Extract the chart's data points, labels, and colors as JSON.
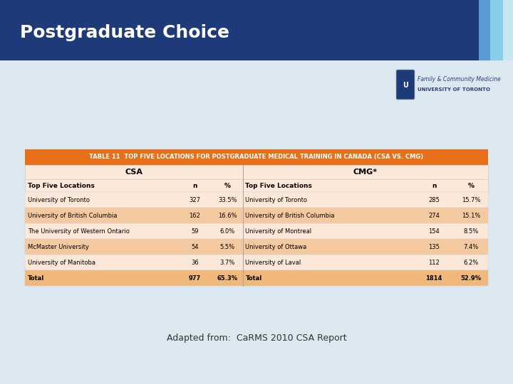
{
  "title": "Postgraduate Choice",
  "header_bg": "#1e3a78",
  "header_text_color": "#ffffff",
  "subtitle": "Adapted from:  CaRMS 2010 CSA Report",
  "table_header": "TABLE 11  TOP FIVE LOCATIONS FOR POSTGRADUATE MEDICAL TRAINING IN CANADA (CSA VS. CMG)",
  "table_header_bg": "#e8701a",
  "table_header_text": "#ffffff",
  "table_bg_light": "#fce8d8",
  "table_bg_dark": "#f5c9a0",
  "table_total_bg": "#f0b87a",
  "csa_header": "CSA",
  "cmg_header": "CMG*",
  "right_bar1": "#5b9bd5",
  "right_bar2": "#87ceeb",
  "right_bar3": "#c8e6f0",
  "body_bg": "#dce8f0",
  "csa_data": [
    [
      "University of Toronto",
      "327",
      "33.5%"
    ],
    [
      "University of British Columbia",
      "162",
      "16.6%"
    ],
    [
      "The University of Western Ontario",
      "59",
      "6.0%"
    ],
    [
      "McMaster University",
      "54",
      "5.5%"
    ],
    [
      "University of Manitoba",
      "36",
      "3.7%"
    ],
    [
      "Total",
      "977",
      "65.3%"
    ]
  ],
  "cmg_data": [
    [
      "University of Toronto",
      "285",
      "15.7%"
    ],
    [
      "University of British Columbia",
      "274",
      "15.1%"
    ],
    [
      "University of Montreal",
      "154",
      "8.5%"
    ],
    [
      "University of Ottawa",
      "135",
      "7.4%"
    ],
    [
      "University of Laval",
      "112",
      "6.2%"
    ],
    [
      "Total",
      "1814",
      "52.9%"
    ]
  ]
}
